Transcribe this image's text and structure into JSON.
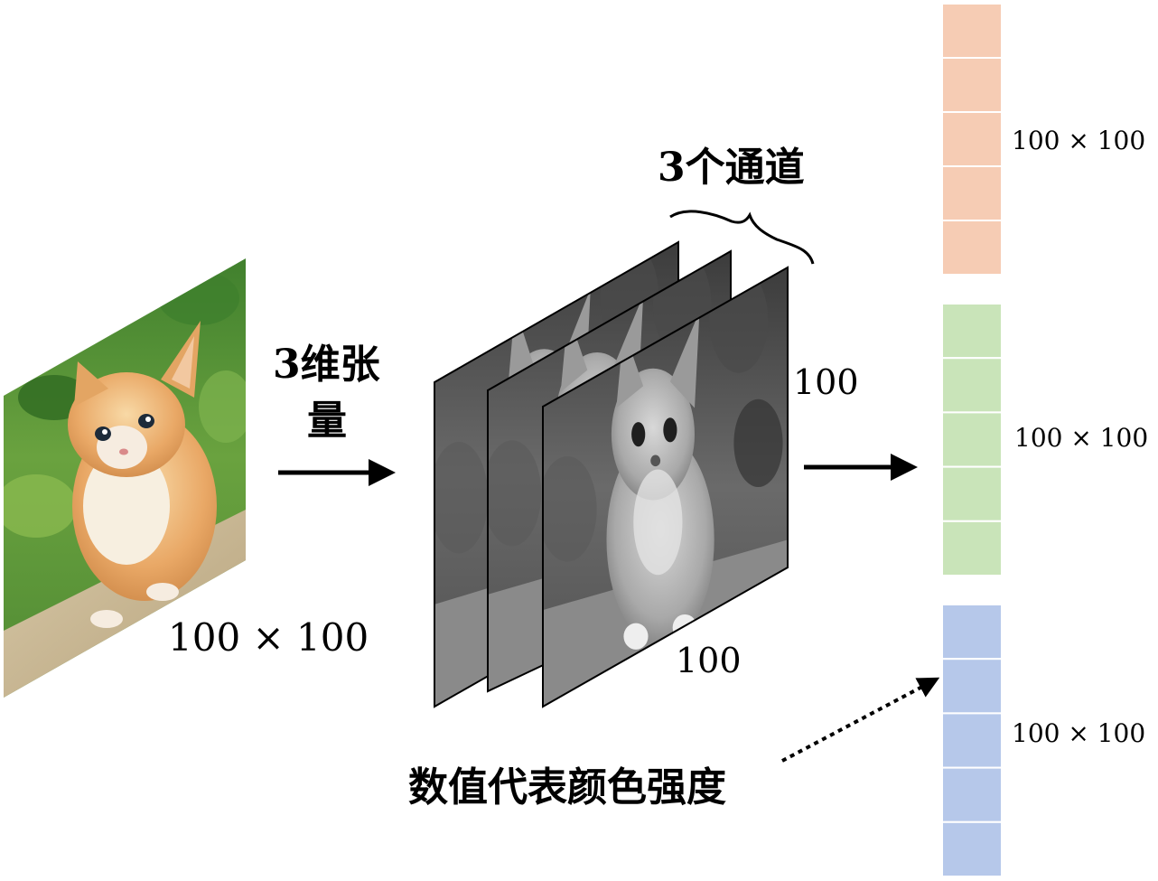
{
  "labels": {
    "tensor_line1": "3维张",
    "tensor_line2": "量",
    "channels": "3个通道",
    "image_size": "100 × 100",
    "height": "100",
    "width": "100",
    "color_intensity": "数值代表颜色强度",
    "red_block": "100 × 100",
    "green_block": "100 × 100",
    "blue_block": "100 × 100"
  },
  "vector": {
    "colors": {
      "red": "#f6ccb4",
      "green": "#c9e4b9",
      "blue": "#b6c8ea"
    },
    "cells_per_block": 5
  },
  "icons": {
    "photo": "kitten-photo",
    "channel": "grayscale-kitten"
  }
}
